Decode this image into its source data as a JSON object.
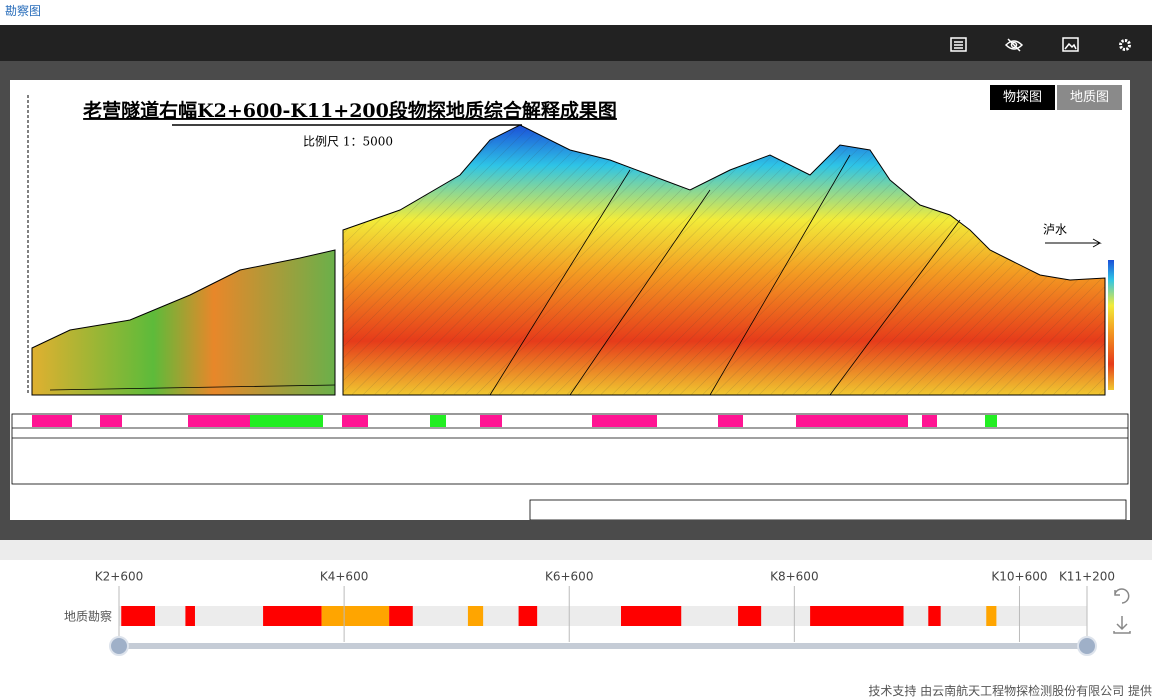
{
  "header": {
    "title": "勘察图"
  },
  "viewer": {
    "tabs": [
      "物探图",
      "地质图"
    ],
    "image": {
      "title": "老营隧道右幅K2+600-K11+200段物探地质综合解释成果图",
      "scale": "比例尺 1：5000",
      "direction": "泸水"
    }
  },
  "timeline": {
    "track": "地质勘察",
    "range": [
      2600,
      11200
    ],
    "ticks": [
      {
        "value": 2600,
        "label": "K2+600"
      },
      {
        "value": 4600,
        "label": "K4+600"
      },
      {
        "value": 6600,
        "label": "K6+600"
      },
      {
        "value": 8600,
        "label": "K8+600"
      },
      {
        "value": 10600,
        "label": "K10+600"
      },
      {
        "value": 11200,
        "label": "K11+200"
      }
    ],
    "segments": [
      {
        "start": 2620,
        "end": 2920,
        "color": "#ff0000"
      },
      {
        "start": 3190,
        "end": 3275,
        "color": "#ff0000"
      },
      {
        "start": 3880,
        "end": 4400,
        "color": "#ff0000"
      },
      {
        "start": 4400,
        "end": 5000,
        "color": "#ffa500"
      },
      {
        "start": 5000,
        "end": 5210,
        "color": "#ff0000"
      },
      {
        "start": 5700,
        "end": 5835,
        "color": "#ffa500"
      },
      {
        "start": 6150,
        "end": 6315,
        "color": "#ff0000"
      },
      {
        "start": 7060,
        "end": 7595,
        "color": "#ff0000"
      },
      {
        "start": 8100,
        "end": 8305,
        "color": "#ff0000"
      },
      {
        "start": 8740,
        "end": 9570,
        "color": "#ff0000"
      },
      {
        "start": 9790,
        "end": 9900,
        "color": "#ff0000"
      },
      {
        "start": 10305,
        "end": 10395,
        "color": "#ffa500"
      }
    ]
  },
  "footer": "技术支持 由云南航天工程物探检测股份有限公司 提供"
}
